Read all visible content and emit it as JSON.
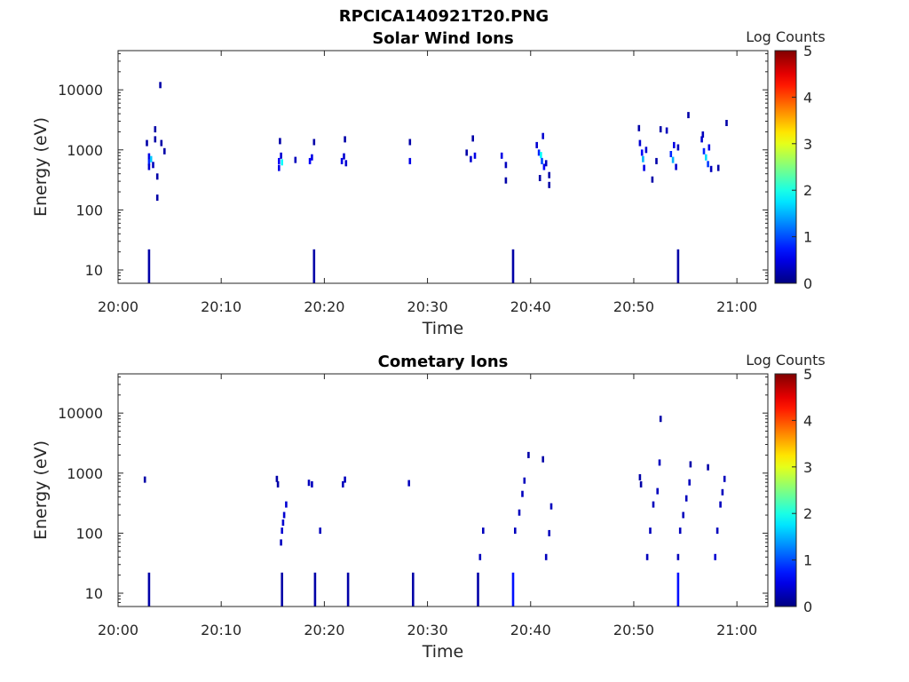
{
  "figure_title": "RPCICA140921T20.PNG",
  "chart_data": [
    {
      "type": "heatmap",
      "title": "Solar Wind Ions",
      "xlabel": "Time",
      "ylabel": "Energy (eV)",
      "yscale": "log",
      "ylim": [
        6,
        45000
      ],
      "xlim_minutes": [
        0,
        63
      ],
      "xticks": [
        "20:00",
        "20:10",
        "20:20",
        "20:30",
        "20:40",
        "20:50",
        "21:00"
      ],
      "yticks": [
        "10",
        "100",
        "1000",
        "10000"
      ],
      "colorbar_label": "Log Counts",
      "colorbar_ticks": [
        "0",
        "1",
        "2",
        "3",
        "4",
        "5"
      ],
      "clim": [
        0,
        5
      ],
      "points": [
        [
          3.0,
          780,
          0.5
        ],
        [
          3.0,
          620,
          0.8
        ],
        [
          3.2,
          700,
          1.6
        ],
        [
          3.0,
          520,
          0.4
        ],
        [
          3.4,
          560,
          0.3
        ],
        [
          2.8,
          1300,
          0.2
        ],
        [
          3.6,
          2200,
          0.2
        ],
        [
          3.6,
          1500,
          0.2
        ],
        [
          3.8,
          160,
          0.2
        ],
        [
          3.8,
          360,
          0.2
        ],
        [
          4.1,
          12000,
          0.2
        ],
        [
          4.2,
          1300,
          0.2
        ],
        [
          4.5,
          950,
          0.2
        ],
        [
          15.6,
          650,
          0.6
        ],
        [
          15.6,
          500,
          0.5
        ],
        [
          15.8,
          800,
          0.4
        ],
        [
          15.7,
          1400,
          0.2
        ],
        [
          15.9,
          620,
          1.9
        ],
        [
          17.2,
          680,
          0.3
        ],
        [
          18.6,
          650,
          0.6
        ],
        [
          18.8,
          750,
          0.5
        ],
        [
          19.0,
          1350,
          0.2
        ],
        [
          21.7,
          650,
          0.5
        ],
        [
          21.9,
          780,
          0.4
        ],
        [
          22.0,
          1500,
          0.2
        ],
        [
          22.1,
          600,
          0.4
        ],
        [
          28.3,
          650,
          0.5
        ],
        [
          28.3,
          1350,
          0.2
        ],
        [
          33.8,
          900,
          0.2
        ],
        [
          34.2,
          700,
          0.4
        ],
        [
          34.4,
          1550,
          0.2
        ],
        [
          34.6,
          800,
          0.5
        ],
        [
          37.2,
          800,
          0.5
        ],
        [
          37.6,
          560,
          0.3
        ],
        [
          37.6,
          310,
          0.2
        ],
        [
          40.6,
          1200,
          0.4
        ],
        [
          40.8,
          900,
          0.8
        ],
        [
          41.0,
          820,
          1.9
        ],
        [
          41.1,
          650,
          1.0
        ],
        [
          41.2,
          1700,
          0.4
        ],
        [
          41.3,
          520,
          0.6
        ],
        [
          41.5,
          600,
          0.3
        ],
        [
          41.8,
          380,
          0.2
        ],
        [
          41.8,
          260,
          0.2
        ],
        [
          40.9,
          340,
          0.2
        ],
        [
          50.5,
          2300,
          0.2
        ],
        [
          50.6,
          1300,
          0.4
        ],
        [
          50.8,
          900,
          0.6
        ],
        [
          50.9,
          700,
          1.5
        ],
        [
          51.0,
          500,
          0.5
        ],
        [
          51.2,
          1000,
          0.4
        ],
        [
          51.8,
          320,
          0.2
        ],
        [
          52.2,
          650,
          0.2
        ],
        [
          52.6,
          2200,
          0.2
        ],
        [
          53.2,
          2100,
          0.3
        ],
        [
          53.6,
          850,
          0.8
        ],
        [
          53.8,
          680,
          1.5
        ],
        [
          53.9,
          1200,
          0.5
        ],
        [
          54.1,
          520,
          0.4
        ],
        [
          54.3,
          1100,
          0.3
        ],
        [
          55.3,
          3800,
          0.2
        ],
        [
          56.6,
          1500,
          0.4
        ],
        [
          56.7,
          1800,
          0.3
        ],
        [
          56.8,
          950,
          0.8
        ],
        [
          57.0,
          750,
          1.7
        ],
        [
          57.2,
          580,
          0.9
        ],
        [
          57.3,
          1100,
          0.5
        ],
        [
          57.5,
          480,
          0.3
        ],
        [
          58.2,
          500,
          0.2
        ],
        [
          59.0,
          2800,
          0.2
        ],
        [
          3.0,
          11,
          0.2
        ],
        [
          19.0,
          11,
          0.2
        ],
        [
          38.3,
          11,
          0.2
        ],
        [
          54.3,
          11,
          0.2
        ]
      ]
    },
    {
      "type": "heatmap",
      "title": "Cometary Ions",
      "xlabel": "Time",
      "ylabel": "Energy (eV)",
      "yscale": "log",
      "ylim": [
        6,
        45000
      ],
      "xlim_minutes": [
        0,
        63
      ],
      "xticks": [
        "20:00",
        "20:10",
        "20:20",
        "20:30",
        "20:40",
        "20:50",
        "21:00"
      ],
      "yticks": [
        "10",
        "100",
        "1000",
        "10000"
      ],
      "colorbar_label": "Log Counts",
      "colorbar_ticks": [
        "0",
        "1",
        "2",
        "3",
        "4",
        "5"
      ],
      "clim": [
        0,
        5
      ],
      "points": [
        [
          2.6,
          780,
          0.2
        ],
        [
          15.4,
          800,
          0.2
        ],
        [
          15.5,
          650,
          0.2
        ],
        [
          15.9,
          110,
          0.4
        ],
        [
          16.0,
          150,
          0.4
        ],
        [
          16.1,
          200,
          0.4
        ],
        [
          16.3,
          300,
          0.4
        ],
        [
          15.8,
          70,
          0.3
        ],
        [
          18.5,
          690,
          0.3
        ],
        [
          18.8,
          650,
          0.3
        ],
        [
          19.6,
          110,
          0.3
        ],
        [
          21.8,
          650,
          0.3
        ],
        [
          22.0,
          780,
          0.3
        ],
        [
          28.2,
          680,
          0.3
        ],
        [
          35.1,
          40,
          0.3
        ],
        [
          35.4,
          110,
          0.3
        ],
        [
          38.5,
          110,
          0.3
        ],
        [
          38.9,
          220,
          0.3
        ],
        [
          39.2,
          450,
          0.3
        ],
        [
          39.4,
          750,
          0.3
        ],
        [
          39.8,
          2000,
          0.2
        ],
        [
          41.2,
          1700,
          0.2
        ],
        [
          41.5,
          40,
          0.3
        ],
        [
          41.8,
          100,
          0.3
        ],
        [
          42.0,
          280,
          0.3
        ],
        [
          50.6,
          850,
          0.2
        ],
        [
          50.7,
          650,
          0.2
        ],
        [
          51.3,
          40,
          0.3
        ],
        [
          51.6,
          110,
          0.3
        ],
        [
          51.9,
          300,
          0.3
        ],
        [
          52.3,
          500,
          0.3
        ],
        [
          52.5,
          1500,
          0.3
        ],
        [
          52.6,
          8000,
          0.2
        ],
        [
          54.3,
          40,
          0.3
        ],
        [
          54.5,
          110,
          0.3
        ],
        [
          54.8,
          200,
          0.3
        ],
        [
          55.1,
          380,
          0.3
        ],
        [
          55.4,
          700,
          0.3
        ],
        [
          55.5,
          1400,
          0.2
        ],
        [
          57.2,
          1250,
          0.2
        ],
        [
          57.9,
          40,
          0.4
        ],
        [
          58.1,
          110,
          0.3
        ],
        [
          58.4,
          300,
          0.3
        ],
        [
          58.6,
          480,
          0.3
        ],
        [
          58.8,
          800,
          0.3
        ],
        [
          3.0,
          11,
          0.2
        ],
        [
          15.9,
          11,
          0.2
        ],
        [
          19.1,
          11,
          0.2
        ],
        [
          22.3,
          11,
          0.2
        ],
        [
          28.6,
          11,
          0.2
        ],
        [
          34.9,
          11,
          0.2
        ],
        [
          38.3,
          11,
          0.7
        ],
        [
          54.3,
          11,
          0.7
        ]
      ]
    }
  ]
}
